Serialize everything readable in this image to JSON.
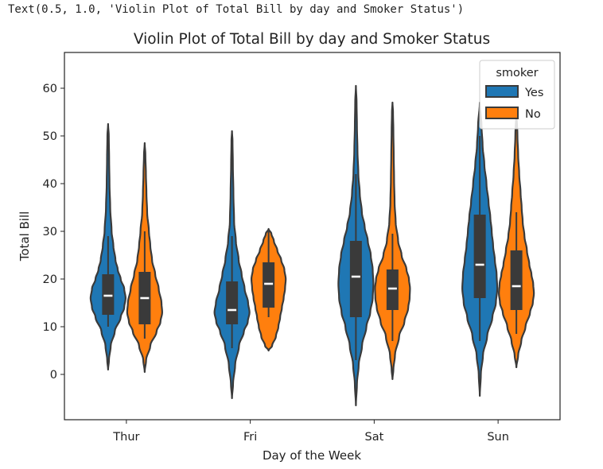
{
  "output_repr": "Text(0.5, 1.0, 'Violin Plot of Total Bill by day and Smoker Status')",
  "colors": {
    "Yes": "#1f77b4",
    "No": "#ff7f0e",
    "edge": "#3a3a3a"
  },
  "chart_data": {
    "type": "violin",
    "title": "Violin Plot of Total Bill by day and Smoker Status",
    "xlabel": "Day of the Week",
    "ylabel": "Total Bill",
    "categories": [
      "Thur",
      "Fri",
      "Sat",
      "Sun"
    ],
    "ylim": [
      -9.5,
      67.5
    ],
    "yticks": [
      0,
      10,
      20,
      30,
      40,
      50,
      60
    ],
    "legend": {
      "title": "smoker",
      "entries": [
        "Yes",
        "No"
      ],
      "placement": "top-right"
    },
    "series": [
      {
        "name": "Yes",
        "violins": [
          {
            "day": "Thur",
            "min": 1,
            "max": 52.5,
            "q1": 12.5,
            "median": 16.5,
            "q3": 21,
            "whisker_low": 10,
            "whisker_high": 29,
            "profile": [
              [
                1,
                0
              ],
              [
                3,
                0.05
              ],
              [
                6,
                0.15
              ],
              [
                9,
                0.38
              ],
              [
                12,
                0.72
              ],
              [
                14,
                0.92
              ],
              [
                16,
                1.0
              ],
              [
                18,
                0.92
              ],
              [
                20,
                0.72
              ],
              [
                22,
                0.55
              ],
              [
                24,
                0.42
              ],
              [
                27,
                0.3
              ],
              [
                30,
                0.2
              ],
              [
                35,
                0.12
              ],
              [
                40,
                0.08
              ],
              [
                45,
                0.06
              ],
              [
                50,
                0.04
              ],
              [
                52.5,
                0
              ]
            ]
          },
          {
            "day": "Fri",
            "min": -5,
            "max": 51,
            "q1": 10.5,
            "median": 13.5,
            "q3": 19.5,
            "whisker_low": 5.5,
            "whisker_high": 29,
            "profile": [
              [
                -5,
                0
              ],
              [
                -2,
                0.06
              ],
              [
                2,
                0.18
              ],
              [
                6,
                0.4
              ],
              [
                9,
                0.68
              ],
              [
                11,
                0.9
              ],
              [
                13,
                1.0
              ],
              [
                15,
                0.92
              ],
              [
                18,
                0.72
              ],
              [
                21,
                0.55
              ],
              [
                24,
                0.38
              ],
              [
                28,
                0.22
              ],
              [
                32,
                0.12
              ],
              [
                38,
                0.08
              ],
              [
                44,
                0.05
              ],
              [
                49,
                0.03
              ],
              [
                51,
                0
              ]
            ]
          },
          {
            "day": "Sat",
            "min": -6.5,
            "max": 60.5,
            "q1": 12,
            "median": 20.5,
            "q3": 28,
            "whisker_low": 3,
            "whisker_high": 42,
            "profile": [
              [
                -6.5,
                0
              ],
              [
                -2,
                0.06
              ],
              [
                2,
                0.16
              ],
              [
                6,
                0.35
              ],
              [
                10,
                0.6
              ],
              [
                13,
                0.82
              ],
              [
                16,
                0.96
              ],
              [
                19,
                1.0
              ],
              [
                22,
                0.96
              ],
              [
                25,
                0.85
              ],
              [
                28,
                0.68
              ],
              [
                31,
                0.5
              ],
              [
                34,
                0.34
              ],
              [
                38,
                0.22
              ],
              [
                42,
                0.14
              ],
              [
                47,
                0.09
              ],
              [
                52,
                0.06
              ],
              [
                57,
                0.04
              ],
              [
                60.5,
                0
              ]
            ]
          },
          {
            "day": "Sun",
            "min": -4.5,
            "max": 57,
            "q1": 16,
            "median": 23,
            "q3": 33.5,
            "whisker_low": 7,
            "whisker_high": 50,
            "profile": [
              [
                -4.5,
                0
              ],
              [
                0,
                0.06
              ],
              [
                4,
                0.18
              ],
              [
                8,
                0.42
              ],
              [
                12,
                0.72
              ],
              [
                15,
                0.92
              ],
              [
                18,
                1.0
              ],
              [
                21,
                0.96
              ],
              [
                24,
                0.86
              ],
              [
                27,
                0.76
              ],
              [
                30,
                0.68
              ],
              [
                33,
                0.6
              ],
              [
                36,
                0.5
              ],
              [
                40,
                0.38
              ],
              [
                44,
                0.26
              ],
              [
                48,
                0.16
              ],
              [
                52,
                0.1
              ],
              [
                57,
                0
              ]
            ]
          }
        ]
      },
      {
        "name": "No",
        "violins": [
          {
            "day": "Thur",
            "min": 0.5,
            "max": 48.5,
            "q1": 10.5,
            "median": 16,
            "q3": 21.5,
            "whisker_low": 7.5,
            "whisker_high": 30,
            "profile": [
              [
                0.5,
                0
              ],
              [
                3,
                0.08
              ],
              [
                6,
                0.32
              ],
              [
                9,
                0.68
              ],
              [
                11,
                0.9
              ],
              [
                13,
                1.0
              ],
              [
                15,
                0.96
              ],
              [
                18,
                0.8
              ],
              [
                21,
                0.6
              ],
              [
                24,
                0.42
              ],
              [
                27,
                0.32
              ],
              [
                30,
                0.24
              ],
              [
                34,
                0.14
              ],
              [
                38,
                0.1
              ],
              [
                42,
                0.07
              ],
              [
                46,
                0.04
              ],
              [
                48.5,
                0
              ]
            ]
          },
          {
            "day": "Fri",
            "min": 5,
            "max": 30.5,
            "q1": 14,
            "median": 19,
            "q3": 23.5,
            "whisker_low": 12,
            "whisker_high": 30,
            "profile": [
              [
                5,
                0
              ],
              [
                6,
                0.2
              ],
              [
                8,
                0.42
              ],
              [
                10,
                0.56
              ],
              [
                12,
                0.66
              ],
              [
                14,
                0.76
              ],
              [
                16,
                0.86
              ],
              [
                18,
                0.94
              ],
              [
                20,
                0.98
              ],
              [
                22,
                0.9
              ],
              [
                24,
                0.72
              ],
              [
                26,
                0.5
              ],
              [
                28,
                0.3
              ],
              [
                29.5,
                0.16
              ],
              [
                30.5,
                0
              ]
            ]
          },
          {
            "day": "Sat",
            "min": -1,
            "max": 57,
            "q1": 13.5,
            "median": 18,
            "q3": 22,
            "whisker_low": 7,
            "whisker_high": 29.5,
            "profile": [
              [
                -1,
                0
              ],
              [
                1,
                0.05
              ],
              [
                4,
                0.14
              ],
              [
                8,
                0.38
              ],
              [
                11,
                0.68
              ],
              [
                14,
                0.9
              ],
              [
                16,
                0.98
              ],
              [
                18,
                1.0
              ],
              [
                20,
                0.94
              ],
              [
                22,
                0.8
              ],
              [
                25,
                0.52
              ],
              [
                28,
                0.32
              ],
              [
                32,
                0.18
              ],
              [
                36,
                0.12
              ],
              [
                41,
                0.09
              ],
              [
                46,
                0.07
              ],
              [
                51,
                0.05
              ],
              [
                55,
                0.03
              ],
              [
                57,
                0
              ]
            ]
          },
          {
            "day": "Sun",
            "min": 1.5,
            "max": 55.5,
            "q1": 13.5,
            "median": 18.5,
            "q3": 26,
            "whisker_low": 8.5,
            "whisker_high": 34,
            "profile": [
              [
                1.5,
                0
              ],
              [
                4,
                0.1
              ],
              [
                7,
                0.28
              ],
              [
                10,
                0.52
              ],
              [
                13,
                0.78
              ],
              [
                15,
                0.94
              ],
              [
                17,
                1.0
              ],
              [
                19,
                0.96
              ],
              [
                21,
                0.86
              ],
              [
                23,
                0.74
              ],
              [
                26,
                0.6
              ],
              [
                29,
                0.46
              ],
              [
                32,
                0.36
              ],
              [
                35,
                0.3
              ],
              [
                38,
                0.24
              ],
              [
                42,
                0.16
              ],
              [
                46,
                0.1
              ],
              [
                50,
                0.06
              ],
              [
                55.5,
                0
              ]
            ]
          }
        ]
      }
    ]
  }
}
